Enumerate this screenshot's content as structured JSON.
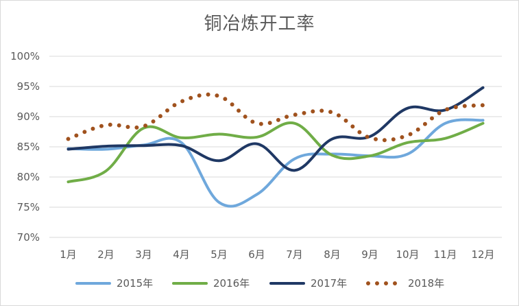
{
  "chart_data": {
    "type": "line",
    "title": "铜冶炼开工率",
    "xlabel": "",
    "ylabel": "",
    "categories": [
      "1月",
      "2月",
      "3月",
      "4月",
      "5月",
      "6月",
      "7月",
      "8月",
      "9月",
      "10月",
      "11月",
      "12月"
    ],
    "y_ticks": [
      "70%",
      "75%",
      "80%",
      "85%",
      "90%",
      "95%",
      "100%"
    ],
    "ylim": [
      70,
      100
    ],
    "grid": true,
    "legend_position": "bottom",
    "series": [
      {
        "name": "2015年",
        "color": "#6fa8dc",
        "style": "solid",
        "values": [
          84.7,
          84.6,
          85.3,
          85.7,
          75.8,
          77.1,
          83.0,
          83.8,
          83.5,
          83.8,
          88.9,
          89.4
        ]
      },
      {
        "name": "2016年",
        "color": "#70ad47",
        "style": "solid",
        "values": [
          79.2,
          81.0,
          88.1,
          86.5,
          87.1,
          86.6,
          88.9,
          83.6,
          83.5,
          85.7,
          86.4,
          88.9
        ]
      },
      {
        "name": "2017年",
        "color": "#1f3864",
        "style": "solid",
        "values": [
          84.6,
          85.1,
          85.2,
          85.2,
          82.7,
          85.5,
          81.1,
          86.3,
          86.7,
          91.4,
          91.1,
          94.8
        ]
      },
      {
        "name": "2018年",
        "color": "#a0521e",
        "style": "dotted",
        "values": [
          86.3,
          88.6,
          88.4,
          92.5,
          93.4,
          88.9,
          90.3,
          90.7,
          86.5,
          86.9,
          91.1,
          91.9
        ]
      }
    ]
  }
}
